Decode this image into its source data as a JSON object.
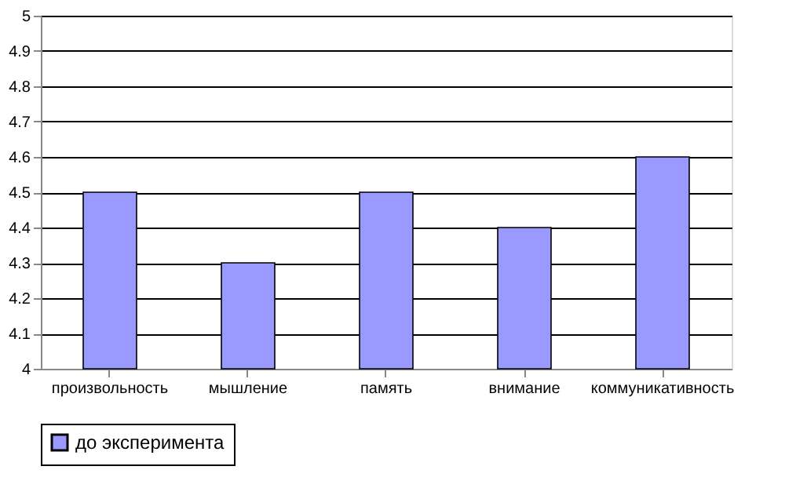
{
  "chart_data": {
    "type": "bar",
    "categories": [
      "произвольность",
      "мышление",
      "память",
      "внимание",
      "коммуникативность"
    ],
    "series": [
      {
        "name": "до эксперимента",
        "color": "#9999ff",
        "values": [
          4.5,
          4.3,
          4.5,
          4.4,
          4.6
        ]
      }
    ],
    "ylim": [
      4,
      5
    ],
    "yticks": [
      4,
      4.1,
      4.2,
      4.3,
      4.4,
      4.5,
      4.6,
      4.7,
      4.8,
      4.9,
      5
    ],
    "grid": "y",
    "legend": "bottom"
  }
}
